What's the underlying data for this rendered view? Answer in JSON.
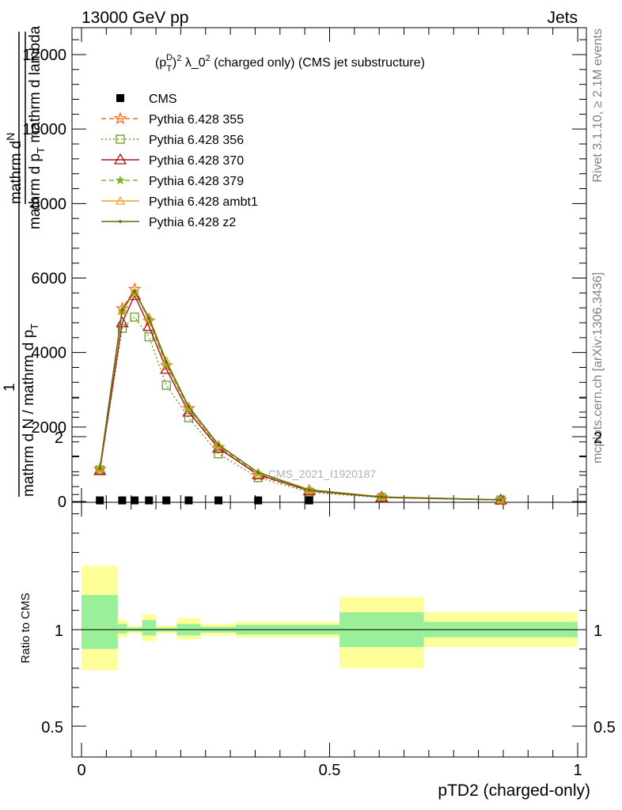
{
  "header": {
    "left": "13000 GeV pp",
    "right": "Jets",
    "side_top": "Rivet 3.1.10, ≥ 2.1M events",
    "side_bottom": "mcplots.cern.ch [arXiv:1306.3436]"
  },
  "labels": {
    "title": "(p_T^D)^2 λ_0^2 (charged only) (CMS jet substructure)",
    "title_lead": "(p",
    "title_sub": "T",
    "title_sup1": "D",
    "title_mid": ")",
    "title_sup2": "2",
    "title_tail": " λ_0",
    "title_sup3": "2",
    "title_end": " (charged only) (CMS jet substructure)",
    "ylabel_numer_line1": "mathrm d",
    "ylabel_numer_N": "N",
    "ylabel_numer_line2": "mathrm d p",
    "ylabel_numer_sub": "T",
    "ylabel_numer_line3": " mathrm d lambda",
    "ylabel_one": "1",
    "ylabel_denom": "mathrm d N / mathrm d p",
    "ylabel_denom_tail": "mathrm d p",
    "ylabel_denom_sub": "T",
    "ratio_ylabel": "Ratio to CMS",
    "xlabel": "pTD2 (charged-only)",
    "watermark": "CMS_2021_I1920187"
  },
  "colors": {
    "cms": "#000000",
    "p355": "#ff6a1a",
    "p356": "#6b9a1a",
    "p370": "#a8141e",
    "p379": "#7ab82a",
    "ambt1": "#f2a020",
    "z2": "#5c6b0e",
    "band_inner": "#99f099",
    "band_outer": "#ffff99"
  },
  "chart_data": {
    "type": "line",
    "xlim": [
      0,
      1
    ],
    "main_ylim": [
      0,
      12700
    ],
    "main_yticks": [
      0,
      2000,
      4000,
      6000,
      8000,
      10000,
      12000
    ],
    "main_ytick_labels": [
      "0",
      "2000",
      "4000",
      "6000",
      "8000",
      "10000",
      "12000"
    ],
    "ratio_ylim": [
      0.4,
      2.3
    ],
    "ratio_yticks": [
      0.5,
      1,
      2
    ],
    "ratio_ytick_labels": [
      "0.5",
      "1",
      "2"
    ],
    "xticks": [
      0,
      0.5,
      1
    ],
    "xtick_labels": [
      "0",
      "0.5",
      "1"
    ],
    "x": [
      0.037,
      0.082,
      0.107,
      0.136,
      0.171,
      0.216,
      0.276,
      0.356,
      0.459,
      0.605,
      0.845
    ],
    "cms": [
      30,
      30,
      30,
      30,
      30,
      30,
      30,
      30,
      30,
      null,
      null
    ],
    "legend": [
      "CMS",
      "Pythia 6.428 355",
      "Pythia 6.428 356",
      "Pythia 6.428 370",
      "Pythia 6.428 379",
      "Pythia 6.428 ambt1",
      "Pythia 6.428 z2"
    ],
    "series": [
      {
        "name": "Pythia 6.428 355",
        "style": "dashed",
        "marker": "star",
        "values": [
          870,
          5180,
          5700,
          4850,
          3650,
          2500,
          1450,
          700,
          280,
          110,
          40
        ]
      },
      {
        "name": "Pythia 6.428 356",
        "style": "dotted",
        "marker": "square",
        "values": [
          850,
          4650,
          4950,
          4420,
          3120,
          2250,
          1280,
          640,
          250,
          105,
          40
        ]
      },
      {
        "name": "Pythia 6.428 370",
        "style": "solid",
        "marker": "triangle",
        "values": [
          830,
          4800,
          5530,
          4700,
          3550,
          2400,
          1430,
          720,
          290,
          112,
          42
        ]
      },
      {
        "name": "Pythia 6.428 379",
        "style": "dashed",
        "marker": "smallstar",
        "values": [
          880,
          5100,
          5620,
          4880,
          3680,
          2480,
          1480,
          750,
          300,
          118,
          44
        ]
      },
      {
        "name": "Pythia 6.428 ambt1",
        "style": "solid",
        "marker": "opentriangle",
        "values": [
          900,
          5120,
          5610,
          4950,
          3780,
          2550,
          1530,
          780,
          320,
          125,
          46
        ]
      },
      {
        "name": "Pythia 6.428 z2",
        "style": "solid",
        "marker": "dot",
        "values": [
          890,
          5150,
          5650,
          4920,
          3750,
          2550,
          1520,
          780,
          310,
          122,
          45
        ]
      }
    ],
    "ratio_bands": [
      {
        "x0": 0.0,
        "x1": 0.073,
        "inner": [
          0.9,
          1.18
        ],
        "outer": [
          0.79,
          1.33
        ]
      },
      {
        "x0": 0.073,
        "x1": 0.092,
        "inner": [
          0.98,
          1.03
        ],
        "outer": [
          0.96,
          1.05
        ]
      },
      {
        "x0": 0.092,
        "x1": 0.122,
        "inner": [
          0.99,
          1.01
        ],
        "outer": [
          0.98,
          1.02
        ]
      },
      {
        "x0": 0.122,
        "x1": 0.15,
        "inner": [
          0.97,
          1.05
        ],
        "outer": [
          0.94,
          1.08
        ]
      },
      {
        "x0": 0.15,
        "x1": 0.192,
        "inner": [
          0.99,
          1.01
        ],
        "outer": [
          0.98,
          1.02
        ]
      },
      {
        "x0": 0.192,
        "x1": 0.24,
        "inner": [
          0.97,
          1.03
        ],
        "outer": [
          0.95,
          1.06
        ]
      },
      {
        "x0": 0.24,
        "x1": 0.311,
        "inner": [
          0.985,
          1.015
        ],
        "outer": [
          0.97,
          1.03
        ]
      },
      {
        "x0": 0.311,
        "x1": 0.52,
        "inner": [
          0.975,
          1.025
        ],
        "outer": [
          0.96,
          1.04
        ]
      },
      {
        "x0": 0.52,
        "x1": 0.69,
        "inner": [
          0.91,
          1.09
        ],
        "outer": [
          0.8,
          1.17
        ]
      },
      {
        "x0": 0.69,
        "x1": 1.0,
        "inner": [
          0.96,
          1.04
        ],
        "outer": [
          0.91,
          1.09
        ]
      }
    ]
  }
}
